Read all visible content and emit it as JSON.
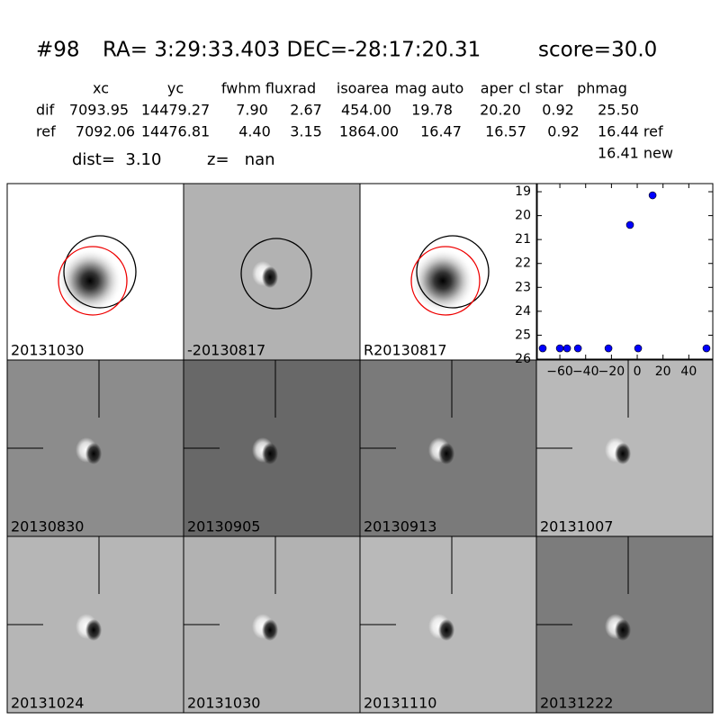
{
  "header": {
    "id": "#98",
    "coords": "RA= 3:29:33.403 DEC=-28:17:20.31",
    "score": "score=30.0",
    "columns": [
      "xc",
      "yc",
      "fwhm",
      "fluxrad",
      "isoarea",
      "mag auto",
      "aper",
      "cl star",
      "phmag"
    ],
    "rows": [
      [
        "dif",
        "7093.95",
        "14479.27",
        "7.90",
        "2.67",
        "454.00",
        "19.78",
        "20.20",
        "0.92",
        "25.50"
      ],
      [
        "ref",
        "7092.06",
        "14476.81",
        "4.40",
        "3.15",
        "1864.00",
        "16.47",
        "16.57",
        "0.92",
        "16.44 ref"
      ]
    ],
    "new_mag": "16.41 new",
    "dist": "dist=  3.10",
    "z": "z=   nan"
  },
  "stamps": [
    {
      "label": "20131030"
    },
    {
      "label": "-20130817"
    },
    {
      "label": "R20130817"
    },
    {
      "label": "20130830"
    },
    {
      "label": "20130905"
    },
    {
      "label": "20130913"
    },
    {
      "label": "20131007"
    },
    {
      "label": "20131024"
    },
    {
      "label": "20131030",
      "color": "#ff0000"
    },
    {
      "label": "20131110"
    },
    {
      "label": "20131222"
    }
  ],
  "chart_data": {
    "type": "scatter",
    "color": "#0000ff",
    "x": [
      -73.3,
      -60,
      -54.4,
      -46,
      -22.3,
      -5.6,
      0.7,
      11.9,
      53.7
    ],
    "values": [
      25.55,
      25.55,
      25.55,
      25.55,
      25.55,
      20.39,
      25.55,
      19.15,
      25.55
    ],
    "xlim": [
      -77.5,
      58.6
    ],
    "ylim": [
      26,
      18.66
    ],
    "y_inverted": true,
    "xticks": [
      {
        "value": -60,
        "label": "−60"
      },
      {
        "value": -40,
        "label": "−40"
      },
      {
        "value": -20,
        "label": "−20"
      },
      0,
      20,
      40
    ],
    "yticks": [
      19,
      20,
      21,
      22,
      23,
      24,
      25,
      26
    ]
  }
}
